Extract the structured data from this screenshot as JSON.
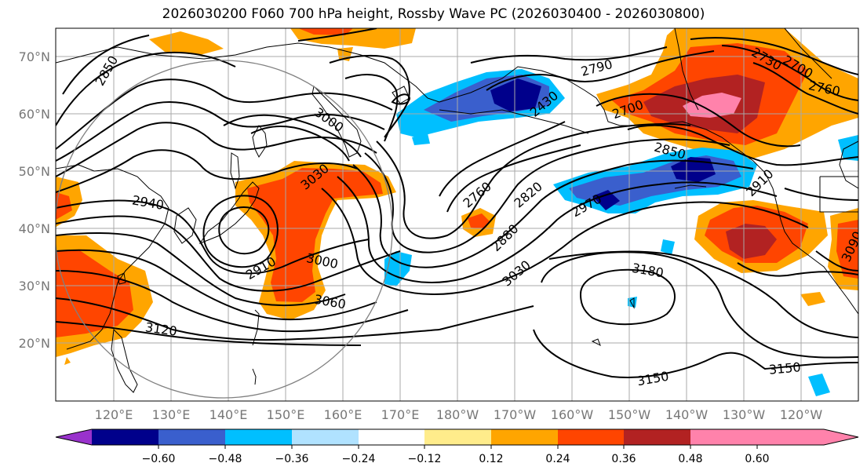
{
  "title": "2026030200 F060 700 hPa height, Rossby Wave PC (2026030400 - 2026030800)",
  "lat_labels": [
    "70°N",
    "60°N",
    "50°N",
    "40°N",
    "30°N",
    "20°N"
  ],
  "lon_labels": [
    "120°E",
    "130°E",
    "140°E",
    "150°E",
    "160°E",
    "170°E",
    "180°W",
    "170°W",
    "160°W",
    "150°W",
    "140°W",
    "130°W",
    "120°W"
  ],
  "contour_labels": [
    "2850",
    "3000",
    "3030",
    "2940",
    "2910",
    "3000",
    "3060",
    "3120",
    "2790",
    "2730",
    "2700",
    "2760",
    "2850",
    "2760",
    "2820",
    "2880",
    "3030",
    "2970",
    "3180",
    "3150",
    "3150",
    "3090",
    "2700",
    "2430",
    "2910"
  ],
  "colorbar": {
    "ticks": [
      "−0.60",
      "−0.48",
      "−0.36",
      "−0.24",
      "−0.12",
      "0.12",
      "0.24",
      "0.36",
      "0.48",
      "0.60"
    ],
    "colors": [
      "#9932CC",
      "#00008B",
      "#3A5FCD",
      "#00BFFF",
      "#B0E2FF",
      "#FFFFFF",
      "#FFEC8B",
      "#FFA500",
      "#FF4500",
      "#B22222",
      "#FF82AB"
    ]
  },
  "palette": {
    "pos1": "#FFA500",
    "pos2": "#FF4500",
    "pos3": "#B22222",
    "pos4": "#FF82AB",
    "neg1": "#B0E2FF",
    "neg2": "#00BFFF",
    "neg3": "#3A5FCD",
    "neg4": "#00008B"
  }
}
